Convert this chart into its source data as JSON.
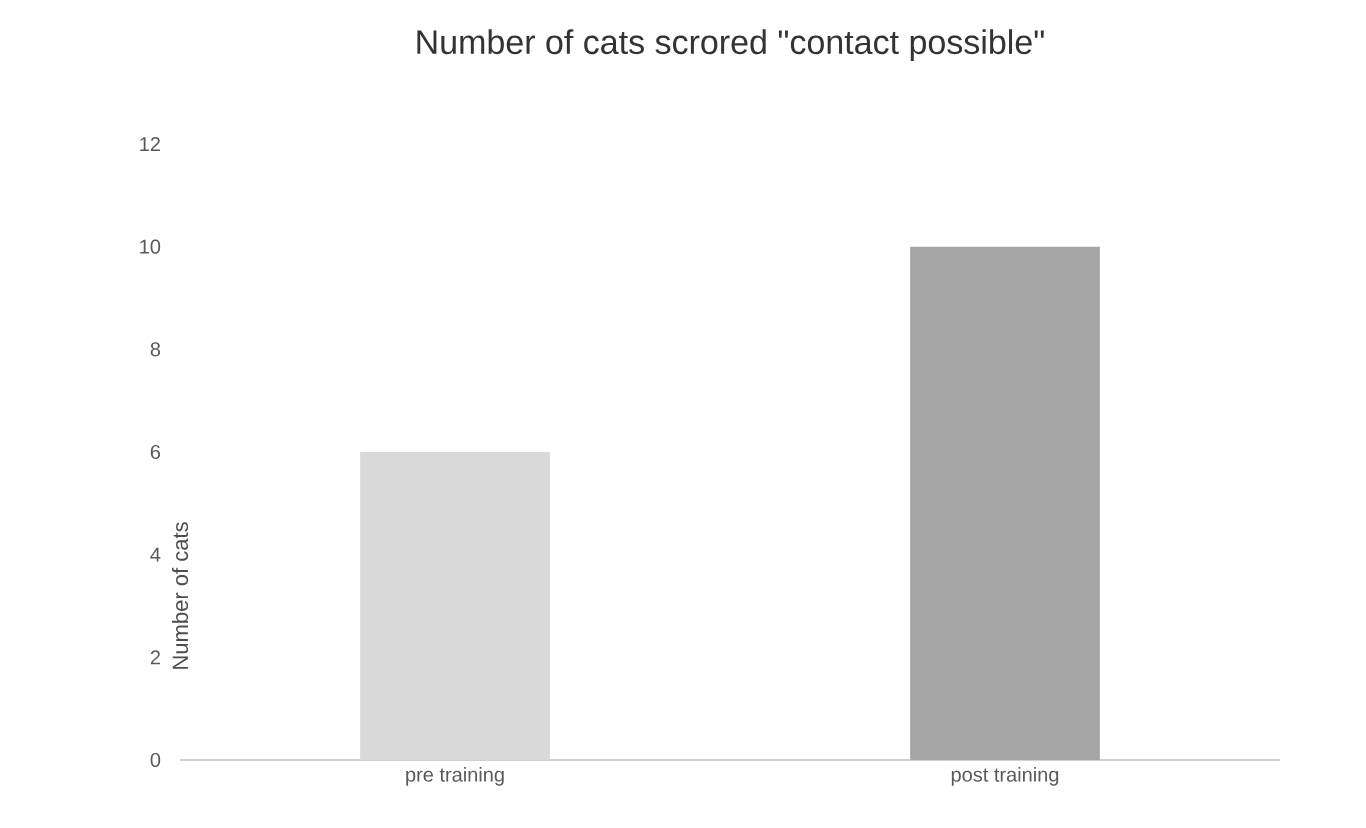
{
  "chart_data": {
    "type": "bar",
    "title": "Number of cats scrored \"contact possible\"",
    "ylabel": "Number of cats",
    "categories": [
      "pre training",
      "post training"
    ],
    "values": [
      6,
      10
    ],
    "colors": [
      "#d9d9d9",
      "#a5a5a5"
    ],
    "ylim": [
      0,
      12
    ],
    "yticks": [
      0,
      2,
      4,
      6,
      8,
      10,
      12
    ]
  }
}
